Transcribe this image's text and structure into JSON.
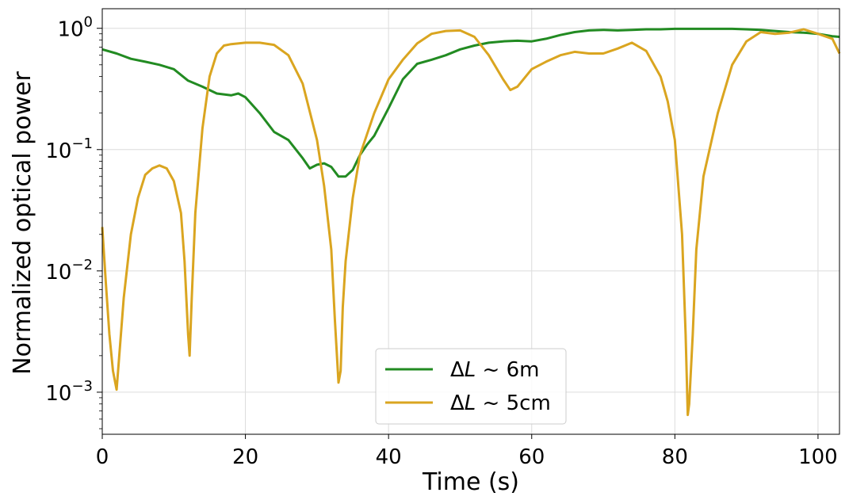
{
  "chart_data": {
    "type": "line",
    "title": "",
    "xlabel": "Time (s)",
    "ylabel": "Normalized optical power",
    "xlim": [
      0,
      103
    ],
    "ylim": [
      0.00045,
      1.45
    ],
    "yscale": "log",
    "grid": true,
    "legend_position": "bottom-center",
    "x_ticks": [
      0,
      20,
      40,
      60,
      80,
      100
    ],
    "x_tick_labels": [
      "0",
      "20",
      "40",
      "60",
      "80",
      "100"
    ],
    "y_ticks": [
      0.001,
      0.01,
      0.1,
      1
    ],
    "y_tick_labels": [
      {
        "base": "10",
        "exp": "−3"
      },
      {
        "base": "10",
        "exp": "−2"
      },
      {
        "base": "10",
        "exp": "−1"
      },
      {
        "base": "10",
        "exp": "0"
      }
    ],
    "series": [
      {
        "name": "ΔL ~ 6m",
        "legend_parts": {
          "delta": "Δ",
          "var": "L",
          "rest": " ~ 6m"
        },
        "color": "#228B22",
        "x": [
          0,
          2,
          4,
          6,
          8,
          10,
          12,
          14,
          16,
          18,
          19,
          20,
          22,
          24,
          26,
          28,
          29,
          30,
          31,
          32,
          33,
          34,
          35,
          36,
          37,
          38,
          40,
          42,
          44,
          46,
          48,
          50,
          52,
          54,
          56,
          58,
          60,
          62,
          64,
          66,
          68,
          70,
          72,
          74,
          76,
          78,
          80,
          82,
          84,
          86,
          88,
          90,
          92,
          94,
          96,
          98,
          100,
          102,
          103
        ],
        "y": [
          0.67,
          0.62,
          0.56,
          0.53,
          0.5,
          0.46,
          0.37,
          0.33,
          0.29,
          0.28,
          0.29,
          0.27,
          0.2,
          0.14,
          0.12,
          0.085,
          0.07,
          0.075,
          0.077,
          0.072,
          0.06,
          0.06,
          0.068,
          0.09,
          0.11,
          0.13,
          0.22,
          0.38,
          0.51,
          0.55,
          0.6,
          0.67,
          0.72,
          0.76,
          0.78,
          0.79,
          0.78,
          0.82,
          0.88,
          0.93,
          0.96,
          0.97,
          0.96,
          0.97,
          0.98,
          0.98,
          0.99,
          0.99,
          0.99,
          0.99,
          0.99,
          0.98,
          0.97,
          0.95,
          0.93,
          0.92,
          0.9,
          0.86,
          0.85
        ]
      },
      {
        "name": "ΔL ~ 5cm",
        "legend_parts": {
          "delta": "Δ",
          "var": "L",
          "rest": " ~ 5cm"
        },
        "color": "#DAA520",
        "x": [
          0,
          0.5,
          1,
          1.5,
          2,
          2.5,
          3,
          4,
          5,
          6,
          7,
          8,
          9,
          10,
          11,
          11.5,
          12,
          12.2,
          12.5,
          13,
          14,
          15,
          16,
          17,
          18,
          20,
          22,
          24,
          26,
          28,
          30,
          31,
          32,
          32.5,
          33,
          33.3,
          33.6,
          34,
          35,
          36,
          38,
          40,
          42,
          44,
          46,
          48,
          50,
          52,
          54,
          56,
          57,
          58,
          60,
          62,
          64,
          66,
          68,
          70,
          72,
          74,
          76,
          78,
          79,
          80,
          81,
          81.5,
          81.8,
          82,
          82.5,
          83,
          84,
          86,
          88,
          90,
          92,
          94,
          96,
          98,
          100,
          102,
          103
        ],
        "y": [
          0.023,
          0.008,
          0.003,
          0.0015,
          0.00105,
          0.0025,
          0.006,
          0.02,
          0.04,
          0.062,
          0.07,
          0.074,
          0.07,
          0.055,
          0.03,
          0.012,
          0.003,
          0.002,
          0.006,
          0.03,
          0.15,
          0.4,
          0.62,
          0.72,
          0.74,
          0.76,
          0.76,
          0.73,
          0.6,
          0.35,
          0.12,
          0.05,
          0.015,
          0.004,
          0.0012,
          0.0015,
          0.005,
          0.012,
          0.04,
          0.09,
          0.2,
          0.38,
          0.55,
          0.75,
          0.9,
          0.95,
          0.96,
          0.85,
          0.6,
          0.38,
          0.31,
          0.33,
          0.46,
          0.53,
          0.6,
          0.64,
          0.62,
          0.62,
          0.68,
          0.76,
          0.65,
          0.4,
          0.25,
          0.12,
          0.02,
          0.003,
          0.00065,
          0.0008,
          0.003,
          0.015,
          0.06,
          0.2,
          0.5,
          0.78,
          0.93,
          0.9,
          0.92,
          0.98,
          0.9,
          0.82,
          0.62
        ]
      }
    ]
  }
}
